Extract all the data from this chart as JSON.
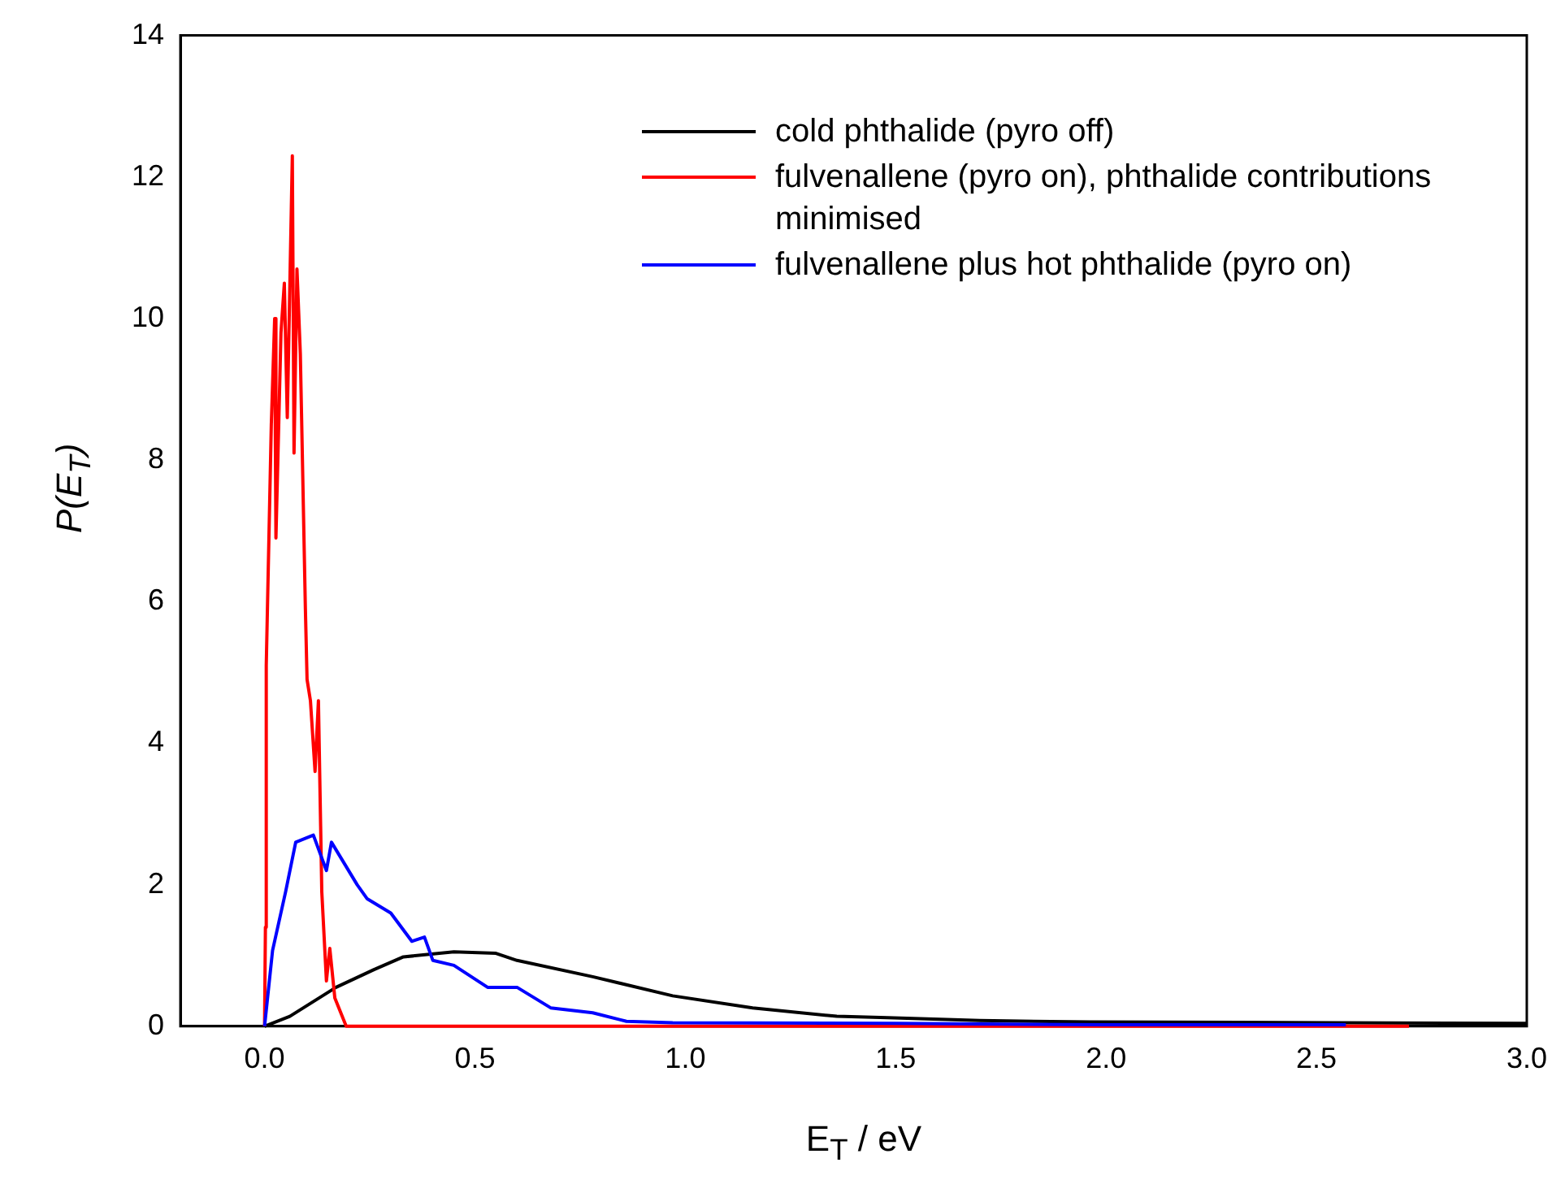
{
  "chart_data": {
    "type": "line",
    "xlabel": "E$_{T}$ / eV",
    "ylabel": "P(E$_{T}$)",
    "xlim": [
      -0.2,
      3.0
    ],
    "ylim": [
      0,
      14
    ],
    "xticks": [
      {
        "value": 0,
        "label": "0.0"
      },
      {
        "value": 0.5,
        "label": "0.5"
      },
      {
        "value": 1,
        "label": "1.0"
      },
      {
        "value": 1.5,
        "label": "1.5"
      },
      {
        "value": 2,
        "label": "2.0"
      },
      {
        "value": 2.5,
        "label": "2.5"
      },
      {
        "value": 3,
        "label": "3.0"
      }
    ],
    "yticks": [
      0,
      2,
      4,
      6,
      8,
      10,
      12,
      14
    ],
    "grid": false,
    "legend": "top right",
    "marker": "none",
    "line_style": "solid",
    "series": [
      {
        "name": "cold phthalide (pyro off)",
        "color": "#000000",
        "x": [
          0,
          0.06,
          0.17,
          0.26,
          0.33,
          0.45,
          0.55,
          0.6,
          0.78,
          0.97,
          1.16,
          1.36,
          1.48,
          1.7,
          1.96,
          2.54,
          3.0
        ],
        "values": [
          0,
          0.14,
          0.55,
          0.8,
          0.98,
          1.05,
          1.03,
          0.93,
          0.7,
          0.43,
          0.26,
          0.14,
          0.12,
          0.08,
          0.06,
          0.05,
          0.04
        ]
      },
      {
        "name": "fulvenallene (pyro on), phthalide contributions minimised",
        "color": "#ff0000",
        "x": [
          0,
          0.002,
          0.004,
          0.016,
          0.024,
          0.027,
          0.039,
          0.047,
          0.054,
          0.066,
          0.07,
          0.077,
          0.085,
          0.097,
          0.101,
          0.109,
          0.12,
          0.128,
          0.136,
          0.147,
          0.155,
          0.167,
          0.194,
          2.72
        ],
        "values": [
          0,
          1.4,
          5.1,
          8.5,
          10.0,
          6.9,
          9.8,
          10.5,
          8.6,
          12.3,
          8.1,
          10.7,
          9.5,
          5.9,
          4.9,
          4.6,
          3.6,
          4.6,
          1.9,
          0.64,
          1.1,
          0.4,
          0,
          0
        ]
      },
      {
        "name": "fulvenallene plus hot phthalide (pyro on)",
        "color": "#0000ff",
        "x": [
          0,
          0.019,
          0.05,
          0.074,
          0.116,
          0.147,
          0.159,
          0.22,
          0.244,
          0.3,
          0.35,
          0.38,
          0.4,
          0.45,
          0.53,
          0.6,
          0.68,
          0.78,
          0.86,
          0.97,
          1.5,
          2.0,
          2.57
        ],
        "values": [
          0,
          1.07,
          1.9,
          2.6,
          2.7,
          2.2,
          2.6,
          2.0,
          1.8,
          1.6,
          1.2,
          1.26,
          0.93,
          0.86,
          0.55,
          0.55,
          0.26,
          0.19,
          0.07,
          0.05,
          0.04,
          0.02,
          0.02
        ]
      }
    ]
  }
}
